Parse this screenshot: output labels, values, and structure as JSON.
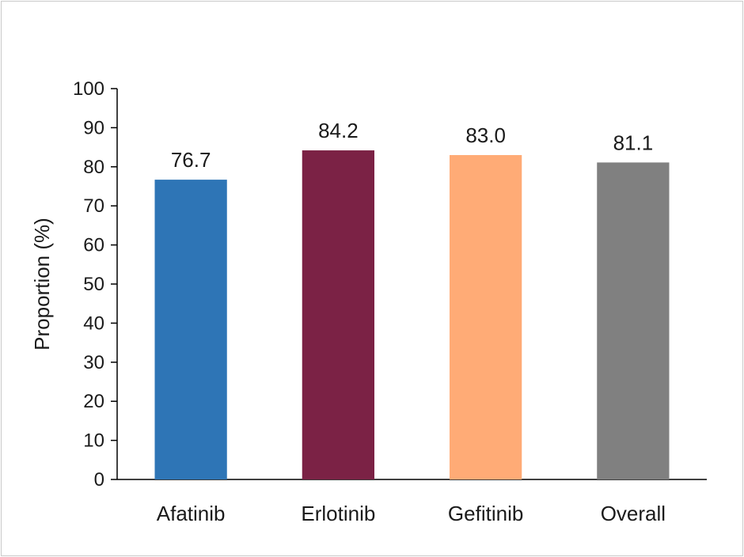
{
  "chart_data": {
    "type": "bar",
    "title": "",
    "xlabel": "",
    "ylabel": "Proportion (%)",
    "ylim": [
      0,
      100
    ],
    "yticks": [
      0,
      10,
      20,
      30,
      40,
      50,
      60,
      70,
      80,
      90,
      100
    ],
    "ytick_labels": [
      "0",
      "10",
      "20",
      "30",
      "40",
      "50",
      "60",
      "70",
      "80",
      "90",
      "100"
    ],
    "categories": [
      "Afatinib",
      "Erlotinib",
      "Gefitinib",
      "Overall"
    ],
    "values": [
      76.7,
      84.2,
      83.0,
      81.1
    ],
    "data_labels": [
      "76.7",
      "84.2",
      "83.0",
      "81.1"
    ],
    "colors": [
      "#2e75b6",
      "#7b2245",
      "#ffab76",
      "#808080"
    ],
    "grid": false,
    "legend": "none"
  }
}
